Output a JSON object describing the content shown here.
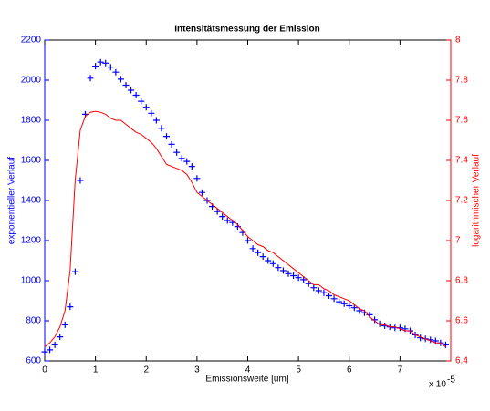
{
  "chart_data": {
    "type": "dual_axis",
    "title": "Intensitätsmessung der Emission",
    "xlabel": "Emissionsweite [um]",
    "x_multiplier": "x 10",
    "x_exponent": "-5",
    "ylabel": "exponentieller Verlauf",
    "y2label": "logarithmischer Verlauf",
    "x": [
      0,
      0.1,
      0.2,
      0.3,
      0.4,
      0.5,
      0.6,
      0.7,
      0.8,
      0.9,
      1,
      1.1,
      1.2,
      1.3,
      1.4,
      1.5,
      1.6,
      1.7,
      1.8,
      1.9,
      2,
      2.1,
      2.2,
      2.3,
      2.4,
      2.5,
      2.6,
      2.7,
      2.8,
      2.9,
      3,
      3.1,
      3.2,
      3.3,
      3.4,
      3.5,
      3.6,
      3.7,
      3.8,
      3.9,
      4,
      4.1,
      4.2,
      4.3,
      4.4,
      4.5,
      4.6,
      4.7,
      4.8,
      4.9,
      5,
      5.1,
      5.2,
      5.3,
      5.4,
      5.5,
      5.6,
      5.7,
      5.8,
      5.9,
      6,
      6.1,
      6.2,
      6.3,
      6.4,
      6.5,
      6.6,
      6.7,
      6.8,
      6.9,
      7,
      7.1,
      7.2,
      7.3,
      7.4,
      7.5,
      7.6,
      7.7,
      7.8,
      7.9
    ],
    "series": [
      {
        "kind": "scatter",
        "marker": "+",
        "color": "#0000ff",
        "axis": "y",
        "values": [
          645,
          655,
          680,
          720,
          780,
          870,
          1045,
          1500,
          1830,
          2010,
          2070,
          2090,
          2085,
          2065,
          2040,
          2005,
          1975,
          1950,
          1925,
          1895,
          1865,
          1835,
          1800,
          1760,
          1720,
          1680,
          1640,
          1610,
          1595,
          1570,
          1510,
          1440,
          1400,
          1370,
          1345,
          1320,
          1300,
          1290,
          1270,
          1240,
          1200,
          1160,
          1140,
          1120,
          1100,
          1085,
          1065,
          1050,
          1035,
          1025,
          1015,
          1005,
          985,
          965,
          950,
          940,
          925,
          910,
          895,
          885,
          875,
          865,
          850,
          840,
          830,
          805,
          785,
          775,
          770,
          765,
          765,
          760,
          750,
          730,
          715,
          710,
          705,
          700,
          690,
          680
        ]
      },
      {
        "kind": "line",
        "color": "#ff0000",
        "axis": "y2",
        "values": [
          6.47,
          6.49,
          6.52,
          6.57,
          6.65,
          6.85,
          7.3,
          7.55,
          7.62,
          7.64,
          7.645,
          7.64,
          7.63,
          7.61,
          7.6,
          7.6,
          7.58,
          7.56,
          7.54,
          7.53,
          7.51,
          7.49,
          7.46,
          7.42,
          7.38,
          7.37,
          7.36,
          7.35,
          7.33,
          7.29,
          7.24,
          7.22,
          7.2,
          7.18,
          7.16,
          7.14,
          7.12,
          7.1,
          7.08,
          7.05,
          7.02,
          7.0,
          6.98,
          6.97,
          6.95,
          6.94,
          6.92,
          6.9,
          6.88,
          6.86,
          6.84,
          6.82,
          6.8,
          6.78,
          6.78,
          6.76,
          6.75,
          6.73,
          6.72,
          6.71,
          6.7,
          6.68,
          6.66,
          6.65,
          6.62,
          6.6,
          6.58,
          6.58,
          6.57,
          6.57,
          6.56,
          6.55,
          6.55,
          6.53,
          6.52,
          6.51,
          6.5,
          6.49,
          6.49,
          6.47
        ]
      }
    ],
    "xlim": [
      0,
      8
    ],
    "xticks": [
      0,
      1,
      2,
      3,
      4,
      5,
      6,
      7
    ],
    "ylim": [
      600,
      2200
    ],
    "yticks": [
      600,
      800,
      1000,
      1200,
      1400,
      1600,
      1800,
      2000,
      2200
    ],
    "y2lim": [
      6.4,
      8
    ],
    "y2ticks": [
      6.4,
      6.6,
      6.8,
      7,
      7.2,
      7.4,
      7.6,
      7.8,
      8
    ],
    "ycolor": "#0000ff",
    "y2color": "#ff0000",
    "grid": false
  }
}
